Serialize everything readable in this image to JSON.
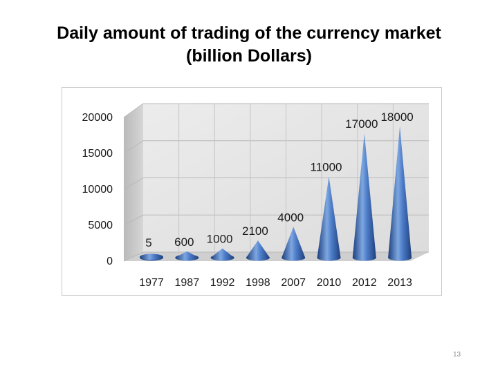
{
  "title_lines": [
    "Daily amount of trading of the currency market",
    "(billion Dollars)"
  ],
  "page_number": "13",
  "chart_data": {
    "type": "bar",
    "shape": "cone",
    "style": "3d",
    "categories": [
      "1977",
      "1987",
      "1992",
      "1998",
      "2007",
      "2010",
      "2012",
      "2013"
    ],
    "values": [
      5,
      600,
      1000,
      2100,
      4000,
      11000,
      17000,
      18000
    ],
    "data_labels": [
      "5",
      "600",
      "1000",
      "2100",
      "4000",
      "11000",
      "17000",
      "18000"
    ],
    "y_ticks": [
      "0",
      "5000",
      "10000",
      "15000",
      "20000"
    ],
    "ylim": [
      0,
      20000
    ],
    "grid": true,
    "legend": "none",
    "bar_color": "#4a78c0"
  }
}
